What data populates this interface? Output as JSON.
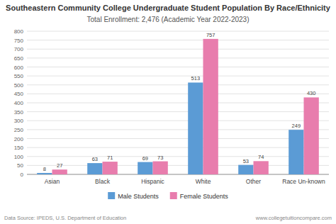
{
  "chart_data": {
    "type": "bar",
    "title": "Southeastern Community College Undergraduate Student Population By Race/Ethnicity",
    "subtitle": "Total Enrollment: 2,476 (Academic Year 2022-2023)",
    "categories": [
      "Asian",
      "Black",
      "Hispanic",
      "White",
      "Other",
      "Race Un-known"
    ],
    "series": [
      {
        "name": "Male Students",
        "color": "#5B9BD5",
        "values": [
          8,
          63,
          69,
          513,
          53,
          249
        ]
      },
      {
        "name": "Female Students",
        "color": "#E87DAD",
        "values": [
          27,
          71,
          73,
          757,
          74,
          430
        ]
      }
    ],
    "ylim": [
      0,
      800
    ],
    "yticks": [
      0,
      50,
      100,
      150,
      200,
      250,
      300,
      350,
      400,
      450,
      500,
      550,
      600,
      650,
      700,
      750,
      800
    ],
    "grid": true,
    "data_labels": true,
    "legend": "bottom",
    "annotations": [
      "Data Source: IPEDS, U.S. Department of Education",
      "www.collegetuitioncompare.com"
    ]
  }
}
